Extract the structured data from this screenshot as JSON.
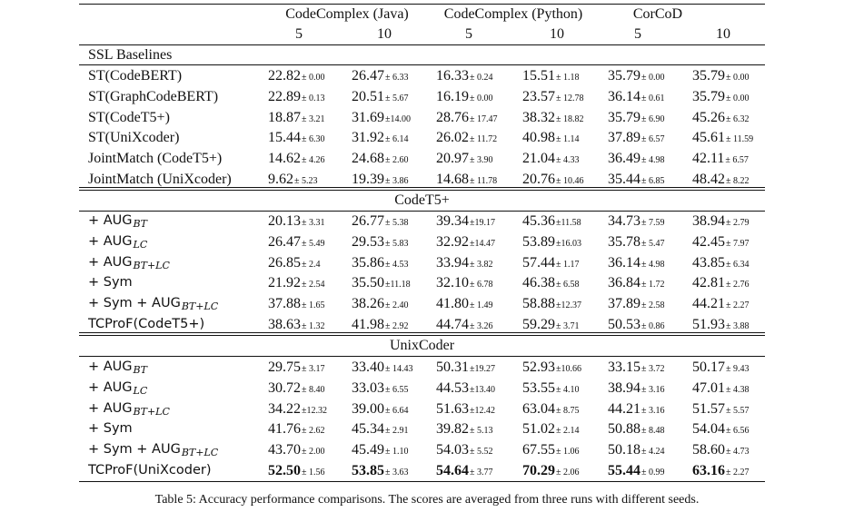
{
  "header": {
    "groups": [
      "CodeComplex (Java)",
      "CodeComplex (Python)",
      "CorCoD"
    ],
    "shots": [
      "5",
      "10",
      "5",
      "10",
      "5",
      "10"
    ]
  },
  "sections": [
    {
      "title": "SSL Baselines",
      "rows": [
        {
          "label": "ST(CodeBERT)",
          "cells": [
            [
              "22.82",
              "± 0.00"
            ],
            [
              "26.47",
              "± 6.33"
            ],
            [
              "16.33",
              "± 0.24"
            ],
            [
              "15.51",
              "± 1.18"
            ],
            [
              "35.79",
              "± 0.00"
            ],
            [
              "35.79",
              "± 0.00"
            ]
          ]
        },
        {
          "label": "ST(GraphCodeBERT)",
          "cells": [
            [
              "22.89",
              "± 0.13"
            ],
            [
              "20.51",
              "± 5.67"
            ],
            [
              "16.19",
              "± 0.00"
            ],
            [
              "23.57",
              "± 12.78"
            ],
            [
              "36.14",
              "± 0.61"
            ],
            [
              "35.79",
              "± 0.00"
            ]
          ]
        },
        {
          "label": "ST(CodeT5+)",
          "cells": [
            [
              "18.87",
              "± 3.21"
            ],
            [
              "31.69",
              "±14.00"
            ],
            [
              "28.76",
              "± 17.47"
            ],
            [
              "38.32",
              "± 18.82"
            ],
            [
              "35.79",
              "± 6.90"
            ],
            [
              "45.26",
              "± 6.32"
            ]
          ]
        },
        {
          "label": "ST(UniXcoder)",
          "cells": [
            [
              "15.44",
              "± 6.30"
            ],
            [
              "31.92",
              "± 6.14"
            ],
            [
              "26.02",
              "± 11.72"
            ],
            [
              "40.98",
              "± 1.14"
            ],
            [
              "37.89",
              "± 6.57"
            ],
            [
              "45.61",
              "± 11.59"
            ]
          ]
        },
        {
          "label": "JointMatch (CodeT5+)",
          "cells": [
            [
              "14.62",
              "± 4.26"
            ],
            [
              "24.68",
              "± 2.60"
            ],
            [
              "20.97",
              "± 3.90"
            ],
            [
              "21.04",
              "± 4.33"
            ],
            [
              "36.49",
              "± 4.98"
            ],
            [
              "42.11",
              "± 6.57"
            ]
          ]
        },
        {
          "label": "JointMatch (UniXcoder)",
          "cells": [
            [
              "9.62",
              "± 5.23"
            ],
            [
              "19.39",
              "± 3.86"
            ],
            [
              "14.68",
              "± 11.78"
            ],
            [
              "20.76",
              "± 10.46"
            ],
            [
              "35.44",
              "± 6.85"
            ],
            [
              "48.42",
              "± 8.22"
            ]
          ]
        }
      ]
    },
    {
      "title": "CodeT5+",
      "rows": [
        {
          "label": "+ AUG",
          "sub": "BT",
          "cells": [
            [
              "20.13",
              "± 3.31"
            ],
            [
              "26.77",
              "± 5.38"
            ],
            [
              "39.34",
              "±19.17"
            ],
            [
              "45.36",
              "±11.58"
            ],
            [
              "34.73",
              "± 7.59"
            ],
            [
              "38.94",
              "± 2.79"
            ]
          ]
        },
        {
          "label": "+ AUG",
          "sub": "LC",
          "cells": [
            [
              "26.47",
              "± 5.49"
            ],
            [
              "29.53",
              "± 5.83"
            ],
            [
              "32.92",
              "±14.47"
            ],
            [
              "53.89",
              "±16.03"
            ],
            [
              "35.78",
              "± 5.47"
            ],
            [
              "42.45",
              "± 7.97"
            ]
          ]
        },
        {
          "label": "+ AUG",
          "sub": "BT+LC",
          "cells": [
            [
              "26.85",
              "± 2.4"
            ],
            [
              "35.86",
              "± 4.53"
            ],
            [
              "33.94",
              "± 3.82"
            ],
            [
              "57.44",
              "± 1.17"
            ],
            [
              "36.14",
              "± 4.98"
            ],
            [
              "43.85",
              "± 6.34"
            ]
          ]
        },
        {
          "label": "+ Sym",
          "cells": [
            [
              "21.92",
              "± 2.54"
            ],
            [
              "35.50",
              "±11.18"
            ],
            [
              "32.10",
              "± 6.78"
            ],
            [
              "46.38",
              "± 6.58"
            ],
            [
              "36.84",
              "± 1.72"
            ],
            [
              "42.81",
              "± 2.76"
            ]
          ]
        },
        {
          "label": "+ Sym + AUG",
          "sub": "BT+LC",
          "cells": [
            [
              "37.88",
              "± 1.65"
            ],
            [
              "38.26",
              "± 2.40"
            ],
            [
              "41.80",
              "± 1.49"
            ],
            [
              "58.88",
              "±12.37"
            ],
            [
              "37.89",
              "± 2.58"
            ],
            [
              "44.21",
              "± 2.27"
            ]
          ]
        },
        {
          "label": "TCProF(CodeT5+)",
          "cells": [
            [
              "38.63",
              "± 1.32"
            ],
            [
              "41.98",
              "± 2.92"
            ],
            [
              "44.74",
              "± 3.26"
            ],
            [
              "59.29",
              "± 3.71"
            ],
            [
              "50.53",
              "± 0.86"
            ],
            [
              "51.93",
              "± 3.88"
            ]
          ]
        }
      ]
    },
    {
      "title": "UnixCoder",
      "rows": [
        {
          "label": "+ AUG",
          "sub": "BT",
          "cells": [
            [
              "29.75",
              "± 3.17"
            ],
            [
              "33.40",
              "± 14.43"
            ],
            [
              "50.31",
              "±19.27"
            ],
            [
              "52.93",
              "±10.66"
            ],
            [
              "33.15",
              "± 3.72"
            ],
            [
              "50.17",
              "± 9.43"
            ]
          ]
        },
        {
          "label": "+ AUG",
          "sub": "LC",
          "cells": [
            [
              "30.72",
              "± 8.40"
            ],
            [
              "33.03",
              "± 6.55"
            ],
            [
              "44.53",
              "±13.40"
            ],
            [
              "53.55",
              "± 4.10"
            ],
            [
              "38.94",
              "± 3.16"
            ],
            [
              "47.01",
              "± 4.38"
            ]
          ]
        },
        {
          "label": "+ AUG",
          "sub": "BT+LC",
          "cells": [
            [
              "34.22",
              "±12.32"
            ],
            [
              "39.00",
              "± 6.64"
            ],
            [
              "51.63",
              "±12.42"
            ],
            [
              "63.04",
              "± 8.75"
            ],
            [
              "44.21",
              "± 3.16"
            ],
            [
              "51.57",
              "± 5.57"
            ]
          ]
        },
        {
          "label": "+ Sym",
          "cells": [
            [
              "41.76",
              "± 2.62"
            ],
            [
              "45.34",
              "± 2.91"
            ],
            [
              "39.82",
              "± 5.13"
            ],
            [
              "51.02",
              "± 2.14"
            ],
            [
              "50.88",
              "± 8.48"
            ],
            [
              "54.04",
              "± 6.56"
            ]
          ]
        },
        {
          "label": "+ Sym + AUG",
          "sub": "BT+LC",
          "cells": [
            [
              "43.70",
              "± 2.00"
            ],
            [
              "45.49",
              "± 1.10"
            ],
            [
              "54.03",
              "± 5.52"
            ],
            [
              "67.55",
              "± 1.06"
            ],
            [
              "50.18",
              "± 4.24"
            ],
            [
              "58.60",
              "± 4.73"
            ]
          ]
        },
        {
          "label": "TCProF(UniXcoder)",
          "best": true,
          "cells": [
            [
              "52.50",
              "± 1.56"
            ],
            [
              "53.85",
              "± 3.63"
            ],
            [
              "54.64",
              "± 3.77"
            ],
            [
              "70.29",
              "± 2.06"
            ],
            [
              "55.44",
              "± 0.99"
            ],
            [
              "63.16",
              "± 2.27"
            ]
          ]
        }
      ]
    }
  ],
  "caption": "Table 5: Accuracy performance comparisons. The scores are averaged from three runs with different seeds."
}
